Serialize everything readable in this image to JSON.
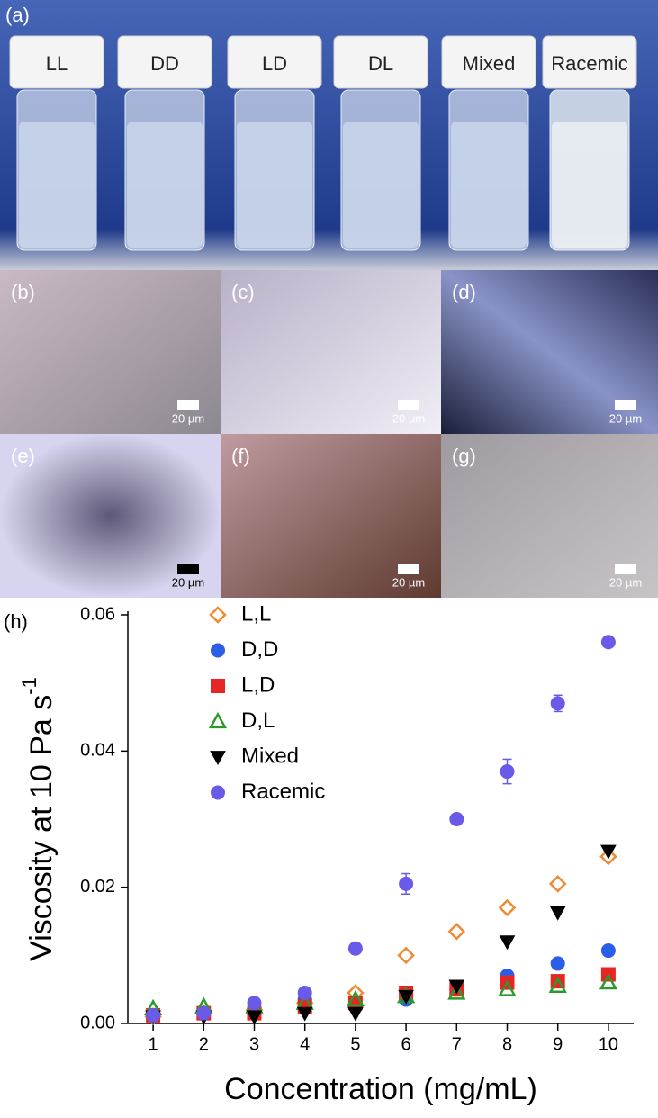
{
  "photo": {
    "label": "(a)",
    "vials": [
      "LL",
      "DD",
      "LD",
      "DL",
      "Mixed",
      "Racemic"
    ]
  },
  "micrographs": [
    {
      "label": "(b)",
      "scale": "20 µm"
    },
    {
      "label": "(c)",
      "scale": "20 µm"
    },
    {
      "label": "(d)",
      "scale": "20 µm"
    },
    {
      "label": "(e)",
      "scale": "20 µm"
    },
    {
      "label": "(f)",
      "scale": "20 µm"
    },
    {
      "label": "(g)",
      "scale": "20 µm"
    }
  ],
  "chart_data": {
    "type": "scatter",
    "panel_label": "(h)",
    "xlabel": "Concentration (mg/mL)",
    "ylabel": "Viscosity at 10 Pa s",
    "ylabel_sup": "-1",
    "x": [
      1,
      2,
      3,
      4,
      5,
      6,
      7,
      8,
      9,
      10
    ],
    "xlim": [
      0.5,
      10.5
    ],
    "xticks": [
      1,
      2,
      3,
      4,
      5,
      6,
      7,
      8,
      9,
      10
    ],
    "ylim": [
      0,
      0.06
    ],
    "yticks": [
      {
        "value": 0,
        "label": "0.00"
      },
      0.02,
      0.04,
      0.06
    ],
    "legend": "upper-left",
    "series": [
      {
        "name": "L,L",
        "color": "#f08a30",
        "marker": "diamond-open",
        "values": [
          0.001,
          0.0015,
          0.002,
          0.003,
          0.0045,
          0.01,
          0.0135,
          0.017,
          0.0205,
          0.0245
        ]
      },
      {
        "name": "D,D",
        "color": "#2a5de8",
        "marker": "circle",
        "values": [
          0.0012,
          0.0015,
          0.002,
          0.0035,
          0.0025,
          0.0035,
          0.005,
          0.007,
          0.0088,
          0.0107
        ]
      },
      {
        "name": "L,D",
        "color": "#e82525",
        "marker": "square",
        "values": [
          0.0012,
          0.0015,
          0.0015,
          0.0025,
          0.003,
          0.0045,
          0.005,
          0.006,
          0.0062,
          0.0072
        ]
      },
      {
        "name": "D,L",
        "color": "#2a9a2a",
        "marker": "triangle-open",
        "values": [
          0.0022,
          0.0025,
          0.0025,
          0.003,
          0.0035,
          0.004,
          0.0045,
          0.005,
          0.0055,
          0.006
        ]
      },
      {
        "name": "Mixed",
        "color": "#000000",
        "marker": "triangle-down",
        "values": [
          0.001,
          0.001,
          0.001,
          0.0015,
          0.0015,
          0.004,
          0.0055,
          0.012,
          0.0163,
          0.0253
        ]
      },
      {
        "name": "Racemic",
        "color": "#6a5ae8",
        "marker": "circle",
        "values": [
          0.0012,
          0.0015,
          0.003,
          0.0045,
          0.011,
          0.0205,
          0.03,
          0.037,
          0.047,
          0.056
        ],
        "errors": [
          0,
          0,
          0,
          0,
          0,
          0.0015,
          0,
          0.0018,
          0.0012,
          0
        ]
      }
    ]
  }
}
